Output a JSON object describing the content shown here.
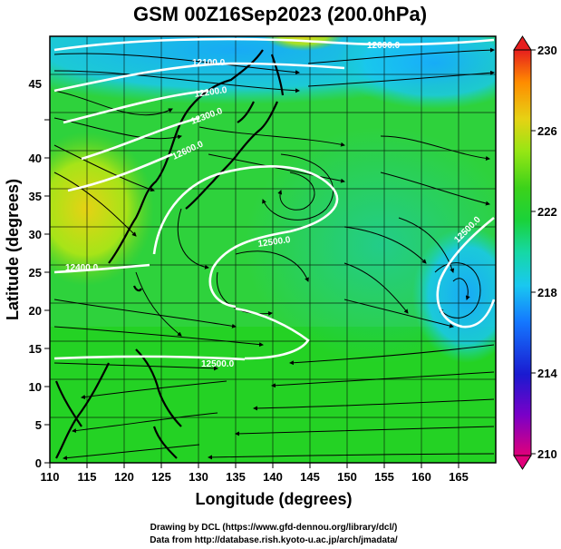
{
  "title": "GSM 00Z16Sep2023 (200.0hPa)",
  "xlabel": "Longitude (degrees)",
  "ylabel": "Latitude  (degrees)",
  "x_ticks": [
    "110",
    "115",
    "120",
    "125",
    "130",
    "135",
    "140",
    "145",
    "150",
    "155",
    "160",
    "165"
  ],
  "y_ticks": [
    "0",
    "5",
    "10",
    "15",
    "20",
    "25",
    "30",
    "35",
    "40",
    "45"
  ],
  "colorbar": {
    "ticks": [
      "230",
      "226",
      "222",
      "218",
      "214",
      "210"
    ],
    "min": 210,
    "max": 230,
    "colors": [
      "#e0007a",
      "#7a00c8",
      "#1a1ad0",
      "#1478ff",
      "#19c8f0",
      "#16d8a6",
      "#1ad23a",
      "#3cd21a",
      "#96e614",
      "#e6d214",
      "#ff8c00",
      "#e61e1e"
    ]
  },
  "contour_labels": [
    "12000.0",
    "12100.0",
    "12200.0",
    "12300.0",
    "12600.0",
    "12500.0",
    "12400.0",
    "12500.0",
    "12500.0"
  ],
  "credits": {
    "line1": "Drawing by DCL (https://www.gfd-dennou.org/library/dcl/)",
    "line2": "Data from http://database.rish.kyoto-u.ac.jp/arch/jmadata/"
  },
  "chart_data": {
    "type": "heatmap",
    "title": "GSM 00Z16Sep2023 (200.0hPa)",
    "xlabel": "Longitude (degrees)",
    "ylabel": "Latitude  (degrees)",
    "xlim": [
      110,
      170
    ],
    "ylim": [
      0,
      50
    ],
    "colorbar_range": [
      210,
      230
    ],
    "overlays": [
      "streamlines",
      "geopotential height contours",
      "coastlines",
      "grid"
    ]
  }
}
